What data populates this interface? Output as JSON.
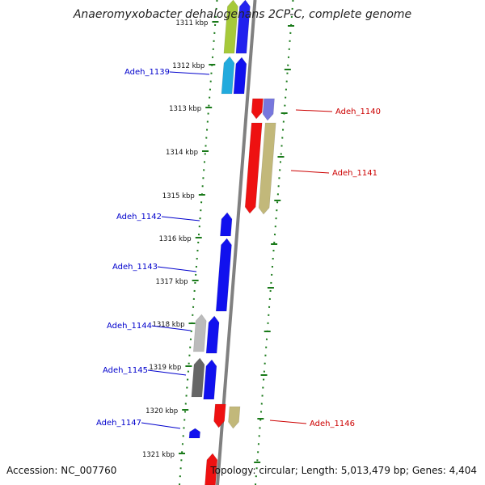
{
  "header": {
    "title": "Anaeromyxobacter dehalogenans 2CP-C, complete genome"
  },
  "footer": {
    "accession": "Accession: NC_007760",
    "summary": "Topology: circular; Length: 5,013,479 bp; Genes: 4,404"
  },
  "colors": {
    "strand_plus_label": "#0000cc",
    "strand_minus_label": "#cc0000",
    "tick_mark": "#1a7a1a",
    "axis_line": "#808080"
  },
  "ruler_labels": [
    "1311 kbp",
    "1312 kbp",
    "1313 kbp",
    "1314 kbp",
    "1315 kbp",
    "1316 kbp",
    "1317 kbp",
    "1318 kbp",
    "1319 kbp",
    "1320 kbp",
    "1321 kbp"
  ],
  "genes_plus": [
    {
      "label": "",
      "color": "#a6c93a"
    },
    {
      "label": "",
      "color": "#2222ee"
    },
    {
      "label": "Adeh_1139",
      "color": "#22aadd"
    },
    {
      "label": "",
      "color": "#1111ee"
    },
    {
      "label": "Adeh_1142",
      "color": "#1111ee"
    },
    {
      "label": "Adeh_1143",
      "color": "#1111ee"
    },
    {
      "label": "Adeh_1144",
      "color": "#bbbbbb"
    },
    {
      "label": "",
      "color": "#1111ee"
    },
    {
      "label": "Adeh_1145",
      "color": "#666666"
    },
    {
      "label": "",
      "color": "#1111ee"
    },
    {
      "label": "Adeh_1147",
      "color": "#1111ee"
    },
    {
      "label": "",
      "color": "#ee1111"
    }
  ],
  "genes_minus": [
    {
      "label": "Adeh_1140",
      "color": "#ee1111"
    },
    {
      "label": "",
      "color": "#7777dd"
    },
    {
      "label": "",
      "color": "#ee1111"
    },
    {
      "label": "Adeh_1141",
      "color": "#c2b87a"
    },
    {
      "label": "Adeh_1146",
      "color": "#ee1111"
    },
    {
      "label": "",
      "color": "#c2b87a"
    }
  ]
}
